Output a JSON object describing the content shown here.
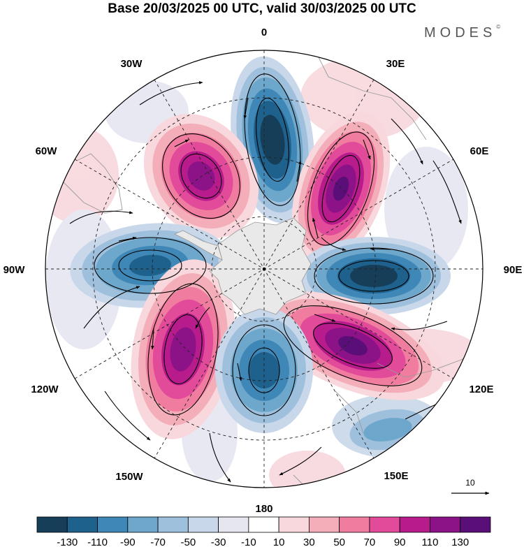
{
  "title": "Base 20/03/2025 00 UTC, valid 30/03/2025 00 UTC",
  "brand": "MODES",
  "brand_mark": "©",
  "longitude_labels": {
    "lon_0": "0",
    "lon_30e": "30E",
    "lon_60e": "60E",
    "lon_90e": "90E",
    "lon_120e": "120E",
    "lon_150e": "150E",
    "lon_180": "180",
    "lon_150w": "150W",
    "lon_120w": "120W",
    "lon_90w": "90W",
    "lon_60w": "60W",
    "lon_30w": "30W"
  },
  "vector_reference": {
    "label": "10",
    "icon": "arrow-right-icon"
  },
  "colorbar": {
    "tick_labels": [
      "-130",
      "-110",
      "-90",
      "-70",
      "-50",
      "-30",
      "-10",
      "10",
      "30",
      "50",
      "70",
      "90",
      "110",
      "130"
    ],
    "colors": [
      "#163e59",
      "#1e618c",
      "#3f87b7",
      "#6ea7cc",
      "#9ec0dc",
      "#c8d7e9",
      "#e6e6f1",
      "#ffffff",
      "#f8d8dd",
      "#f4aeba",
      "#f07da0",
      "#e24a9a",
      "#b81b8c",
      "#8c1387",
      "#5a0f78"
    ]
  },
  "palette": {
    "land_mask": "#e9e9e9",
    "coast": "#9a9a9a"
  }
}
